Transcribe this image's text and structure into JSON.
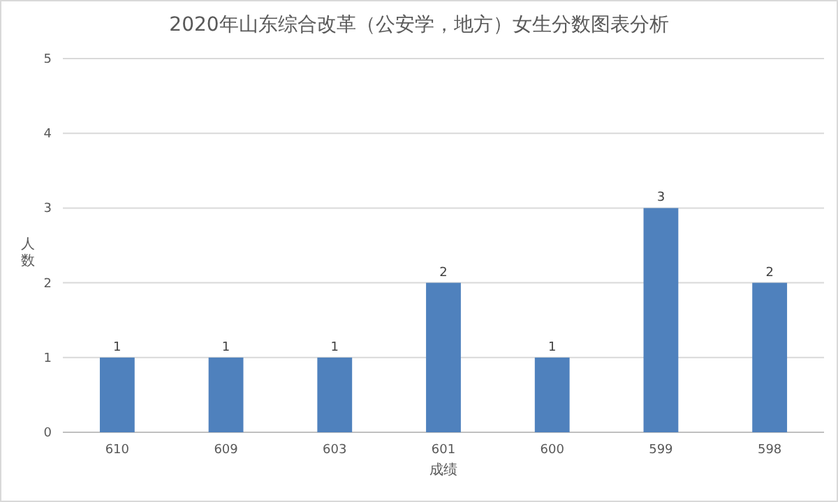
{
  "chart_data": {
    "type": "bar",
    "title": "2020年山东综合改革（公安学，地方）女生分数图表分析",
    "xlabel": "成绩",
    "ylabel": "人数",
    "categories": [
      "610",
      "609",
      "603",
      "601",
      "600",
      "599",
      "598"
    ],
    "values": [
      1,
      1,
      1,
      2,
      1,
      3,
      2
    ],
    "color": "#4f81bd",
    "ylim": [
      0,
      5
    ],
    "yticks": [
      0,
      1,
      2,
      3,
      4,
      5
    ],
    "grid": "y",
    "data_labels": true
  }
}
